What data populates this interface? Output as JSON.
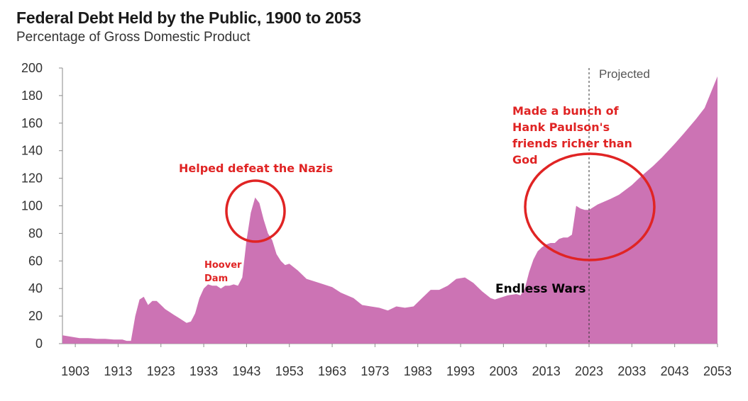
{
  "chart_data": {
    "type": "area",
    "title": "Federal Debt Held by the Public, 1900 to 2053",
    "subtitle": "Percentage of Gross Domestic Product",
    "xlabel": "",
    "ylabel": "",
    "xlim": [
      1900,
      2053
    ],
    "ylim": [
      0,
      200
    ],
    "y_ticks": [
      0,
      20,
      40,
      60,
      80,
      100,
      120,
      140,
      160,
      180,
      200
    ],
    "x_ticks": [
      1903,
      1913,
      1923,
      1933,
      1943,
      1953,
      1963,
      1973,
      1983,
      1993,
      2003,
      2013,
      2023,
      2033,
      2043,
      2053
    ],
    "fill_color": "#cc73b4",
    "annotation_color": "#e02424",
    "projection_start": 2023,
    "projection_label": "Projected",
    "series": [
      {
        "name": "Federal Debt Held by the Public",
        "x": [
          1900,
          1902,
          1904,
          1906,
          1908,
          1910,
          1912,
          1914,
          1915,
          1916,
          1917,
          1918,
          1919,
          1920,
          1921,
          1922,
          1923,
          1924,
          1925,
          1926,
          1927,
          1928,
          1929,
          1930,
          1931,
          1932,
          1933,
          1934,
          1935,
          1936,
          1937,
          1938,
          1939,
          1940,
          1941,
          1942,
          1943,
          1944,
          1945,
          1946,
          1947,
          1948,
          1949,
          1950,
          1951,
          1952,
          1953,
          1955,
          1957,
          1960,
          1963,
          1965,
          1968,
          1970,
          1972,
          1974,
          1976,
          1978,
          1980,
          1982,
          1984,
          1986,
          1988,
          1990,
          1992,
          1994,
          1996,
          1998,
          2000,
          2001,
          2002,
          2004,
          2006,
          2007,
          2008,
          2009,
          2010,
          2011,
          2012,
          2013,
          2014,
          2015,
          2016,
          2017,
          2018,
          2019,
          2020,
          2021,
          2022,
          2023,
          2025,
          2028,
          2030,
          2033,
          2035,
          2038,
          2040,
          2043,
          2045,
          2048,
          2050,
          2053
        ],
        "values": [
          6,
          5,
          4,
          4,
          3.5,
          3.5,
          3,
          3,
          2,
          2,
          20,
          32,
          34,
          28,
          31,
          31,
          28,
          25,
          23,
          21,
          19,
          17,
          15,
          16,
          22,
          33,
          40,
          43,
          42,
          42,
          40,
          42,
          42,
          43,
          42,
          48,
          75,
          95,
          106,
          102,
          90,
          80,
          75,
          65,
          60,
          57,
          58,
          53,
          47,
          44,
          41,
          37,
          33,
          28,
          27,
          26,
          24,
          27,
          26,
          27,
          33,
          39,
          39,
          42,
          47,
          48,
          44,
          38,
          33,
          32,
          33,
          35,
          36,
          35,
          40,
          52,
          61,
          67,
          70,
          72,
          73,
          73,
          76,
          77,
          77,
          79,
          100,
          98,
          97,
          97,
          101,
          105,
          108,
          115,
          121,
          129,
          135,
          145,
          152,
          163,
          171,
          194
        ]
      }
    ],
    "annotations": [
      {
        "text": "Helped defeat the Nazis",
        "x": 1946,
        "y": 106,
        "style": "circle"
      },
      {
        "text": "Hoover",
        "x": 1936,
        "y": 40
      },
      {
        "text": "Dam",
        "x": 1936,
        "y": 40
      },
      {
        "text": "Endless Wars",
        "x": 2004,
        "y": 35
      },
      {
        "text": "Made a bunch of",
        "x": 2020,
        "y": 100,
        "style": "circle"
      },
      {
        "text": "Hank Paulson's",
        "x": 2020,
        "y": 100
      },
      {
        "text": "friends richer than",
        "x": 2020,
        "y": 100
      },
      {
        "text": "God",
        "x": 2020,
        "y": 100
      }
    ]
  }
}
